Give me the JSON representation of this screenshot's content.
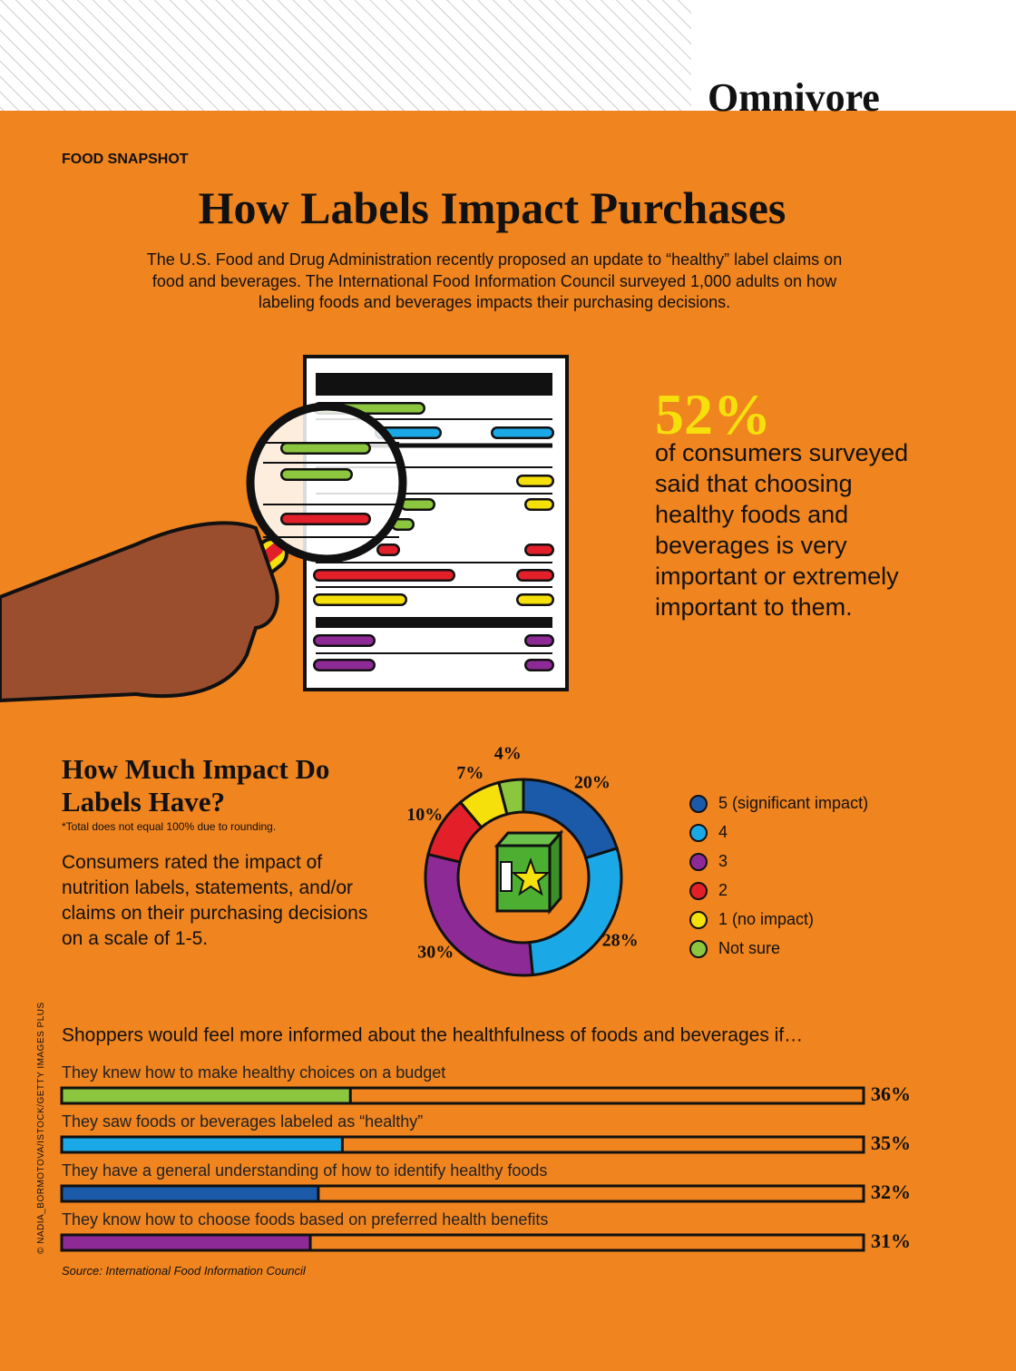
{
  "header": {
    "section": "Omnivore",
    "kicker": "FOOD SNAPSHOT",
    "title": "How Labels Impact Purchases",
    "intro": "The U.S. Food and Drug Administration recently proposed an update to “healthy” label claims on food and beverages. The International Food Information Council surveyed 1,000 adults on how labeling foods and beverages impacts their purchasing decisions."
  },
  "stat": {
    "value": "52%",
    "text": "of consumers surveyed said that choosing healthy foods and beverages is very important or extremely important to them."
  },
  "chart_data": [
    {
      "type": "pie",
      "title": "How Much Impact Do Labels Have?",
      "note": "*Total does not equal 100% due to rounding.",
      "description": "Consumers rated the impact of nutrition labels, statements, and/or claims on their purchasing decisions on a scale of 1-5.",
      "categories": [
        "5 (significant impact)",
        "4",
        "3",
        "2",
        "1 (no impact)",
        "Not sure"
      ],
      "values": [
        20,
        28,
        30,
        10,
        7,
        4
      ],
      "value_labels": [
        "20%",
        "28%",
        "30%",
        "10%",
        "7%",
        "4%"
      ],
      "colors": [
        "#1b5aa8",
        "#1aa9e6",
        "#8e2a96",
        "#e3202a",
        "#f6e00c",
        "#8cc63f"
      ]
    },
    {
      "type": "bar",
      "orientation": "horizontal",
      "title": "Shoppers would feel more informed about the healthfulness of foods and beverages if…",
      "categories": [
        "They knew how to make healthy choices on a budget",
        "They saw foods or beverages labeled as “healthy”",
        "They have a general understanding of how to identify healthy foods",
        "They know how to choose foods based on preferred health benefits"
      ],
      "values": [
        36,
        35,
        32,
        31
      ],
      "value_labels": [
        "36%",
        "35%",
        "32%",
        "31%"
      ],
      "colors": [
        "#8cc63f",
        "#1aa9e6",
        "#1b5aa8",
        "#8e2a96"
      ],
      "xlim": [
        0,
        100
      ]
    }
  ],
  "source": "Source: International Food Information Council",
  "credit": "© NADIA_BORMOTOVA/ISTOCK/GETTY IMAGES PLUS"
}
